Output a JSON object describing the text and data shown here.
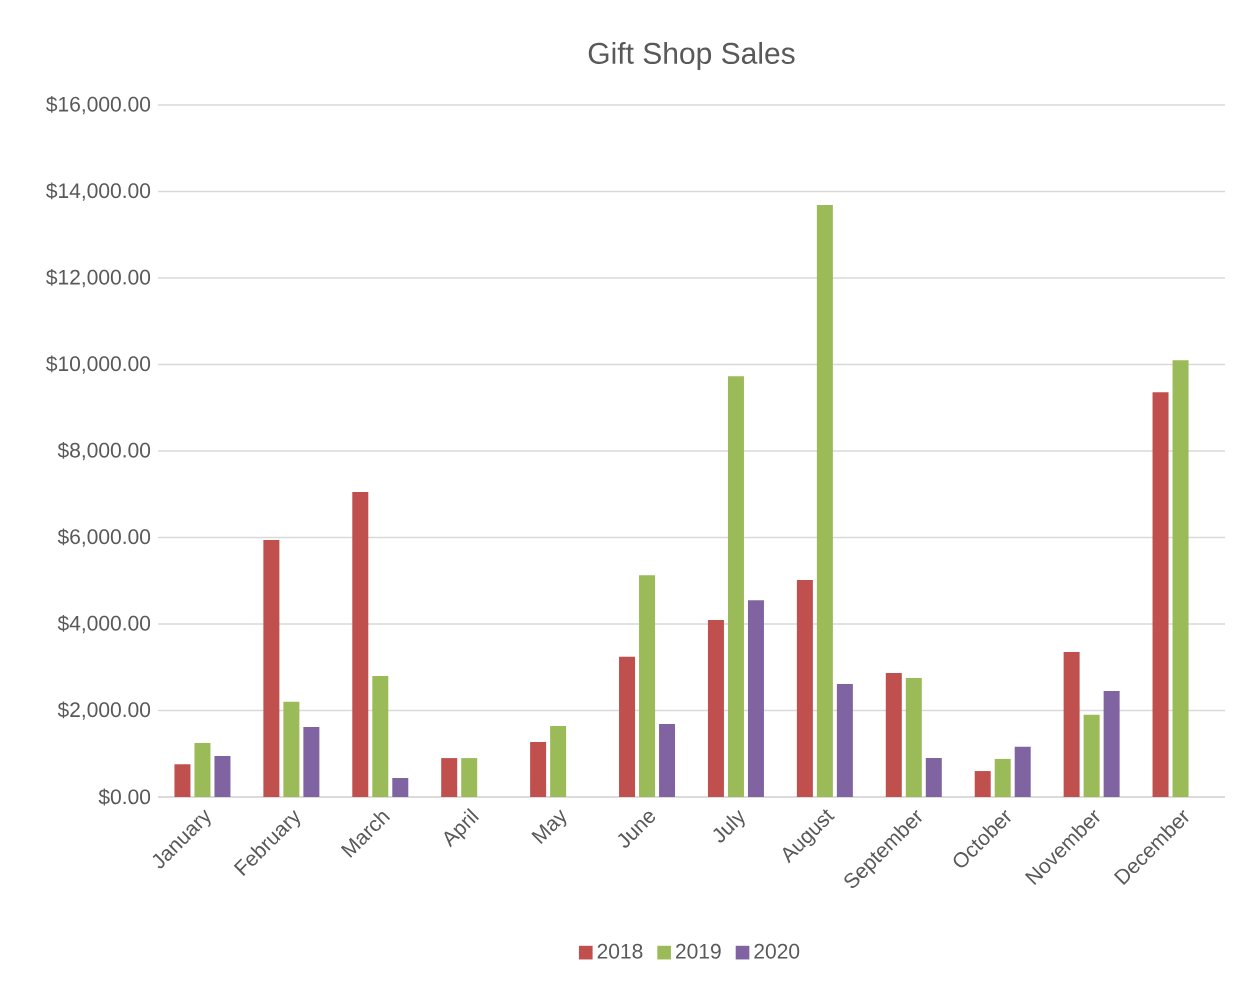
{
  "chart_data": {
    "type": "bar",
    "title": "Gift Shop Sales",
    "categories": [
      "January",
      "February",
      "March",
      "April",
      "May",
      "June",
      "July",
      "August",
      "September",
      "October",
      "November",
      "December"
    ],
    "series": [
      {
        "name": "2018",
        "color": "#c0504d",
        "values": [
          760,
          5940,
          7050,
          900,
          1270,
          3240,
          4090,
          5020,
          2870,
          600,
          3350,
          9360
        ]
      },
      {
        "name": "2019",
        "color": "#9bbb59",
        "values": [
          1250,
          2200,
          2800,
          900,
          1640,
          5130,
          9730,
          13690,
          2750,
          880,
          1900,
          10100
        ]
      },
      {
        "name": "2020",
        "color": "#8064a2",
        "values": [
          950,
          1620,
          440,
          null,
          null,
          1690,
          4550,
          2610,
          900,
          1160,
          2450,
          null
        ]
      }
    ],
    "ylim": [
      0,
      16000
    ],
    "yticks": [
      {
        "value": 0,
        "label": "$0.00"
      },
      {
        "value": 2000,
        "label": "$2,000.00"
      },
      {
        "value": 4000,
        "label": "$4,000.00"
      },
      {
        "value": 6000,
        "label": "$6,000.00"
      },
      {
        "value": 8000,
        "label": "$8,000.00"
      },
      {
        "value": 10000,
        "label": "$10,000.00"
      },
      {
        "value": 12000,
        "label": "$12,000.00"
      },
      {
        "value": 14000,
        "label": "$14,000.00"
      },
      {
        "value": 16000,
        "label": "$16,000.00"
      }
    ],
    "grid": "y",
    "legend": "bottom"
  }
}
